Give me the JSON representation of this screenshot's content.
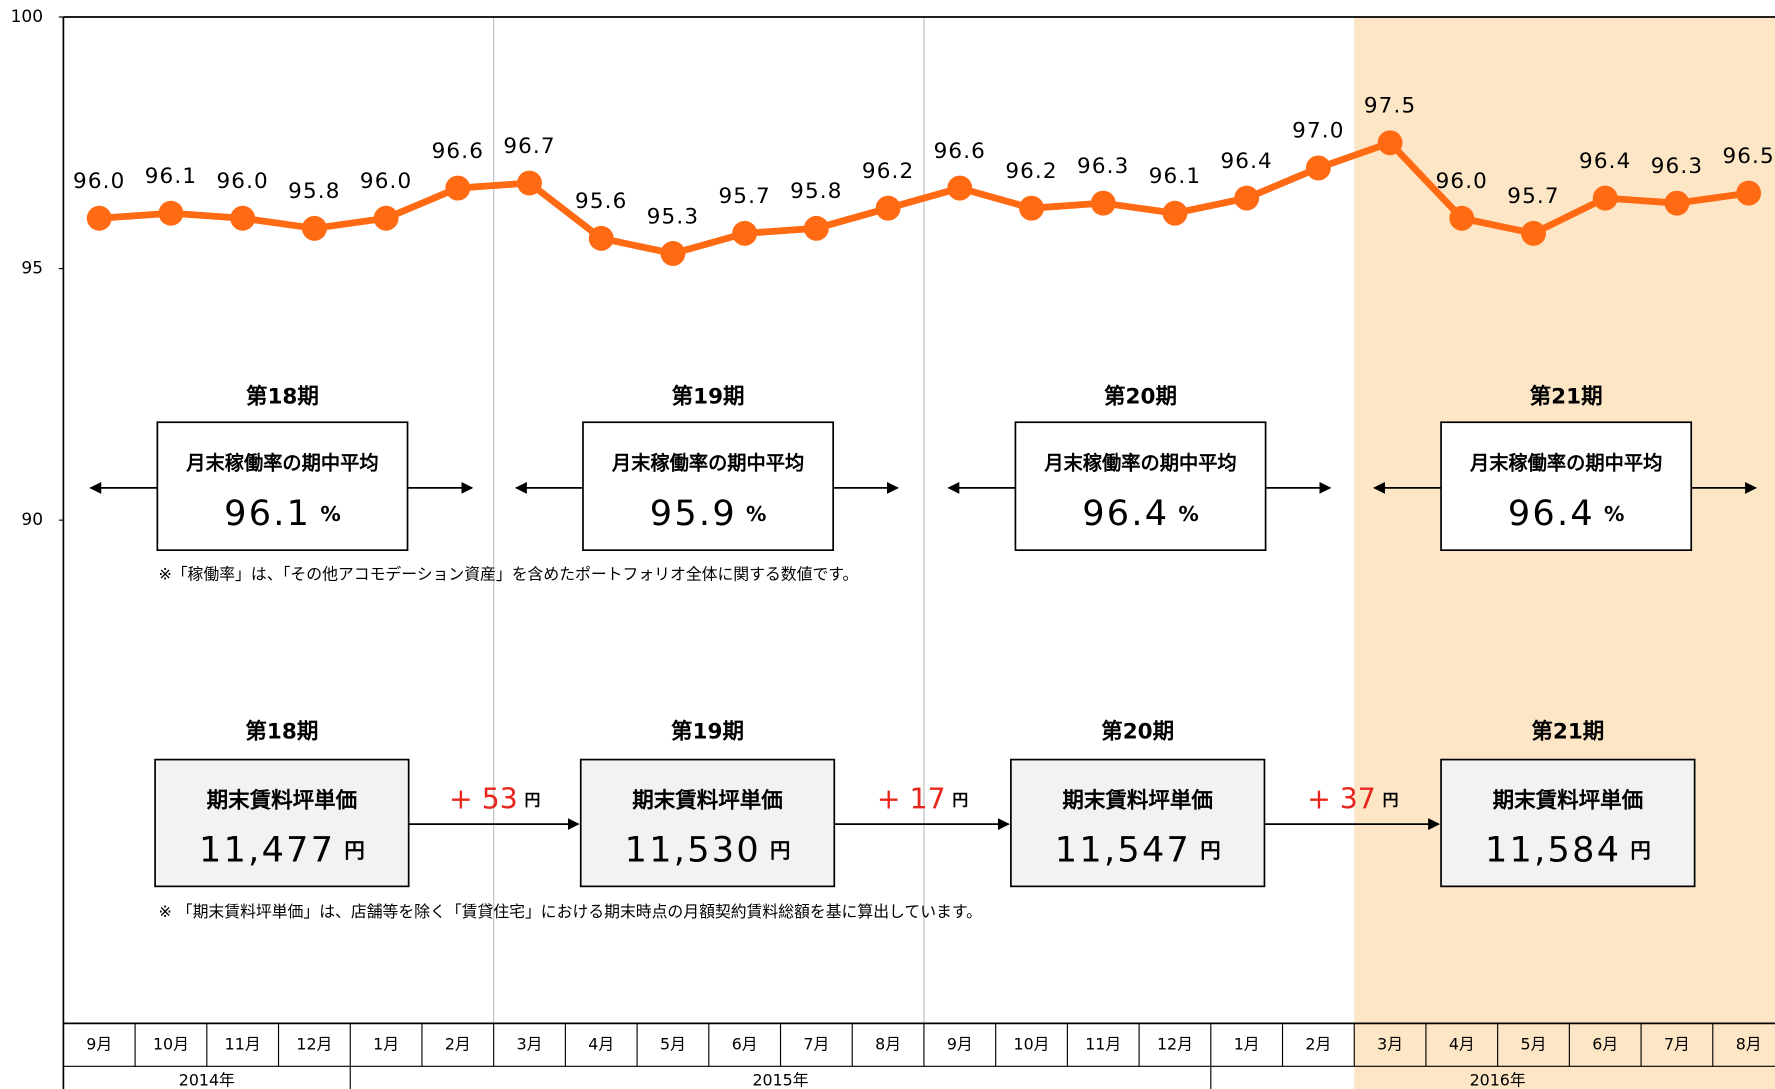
{
  "chart_data": {
    "type": "line",
    "categories": [
      "9月",
      "10月",
      "11月",
      "12月",
      "1月",
      "2月",
      "3月",
      "4月",
      "5月",
      "6月",
      "7月",
      "8月",
      "9月",
      "10月",
      "11月",
      "12月",
      "1月",
      "2月",
      "3月",
      "4月",
      "5月",
      "6月",
      "7月",
      "8月"
    ],
    "years": [
      {
        "label": "2014年",
        "span": 4
      },
      {
        "label": "2015年",
        "span": 12
      },
      {
        "label": "2016年",
        "span": 8
      }
    ],
    "values": [
      96.0,
      96.1,
      96.0,
      95.8,
      96.0,
      96.6,
      96.7,
      95.6,
      95.3,
      95.7,
      95.8,
      96.2,
      96.6,
      96.2,
      96.3,
      96.1,
      96.4,
      97.0,
      97.5,
      96.0,
      95.7,
      96.4,
      96.3,
      96.5
    ],
    "value_labels": [
      "96.0",
      "96.1",
      "96.0",
      "95.8",
      "96.0",
      "96.6",
      "96.7",
      "95.6",
      "95.3",
      "95.7",
      "95.8",
      "96.2",
      "96.6",
      "96.2",
      "96.3",
      "96.1",
      "96.4",
      "97.0",
      "97.5",
      "96.0",
      "95.7",
      "96.4",
      "96.3",
      "96.5"
    ],
    "color": "#ff6a13",
    "ylim": [
      80,
      100
    ],
    "yticks": [
      90,
      95,
      100
    ],
    "period_starts": [
      0,
      6,
      12,
      18
    ],
    "highlight_from": 18,
    "periods": [
      {
        "name": "第18期",
        "occupancy_label": "月末稼働率の期中平均",
        "occupancy": 96.1,
        "occupancy_unit": "%",
        "rent_label": "期末賃料坪単価",
        "rent": "11,477",
        "rent_unit": "円"
      },
      {
        "name": "第19期",
        "occupancy_label": "月末稼働率の期中平均",
        "occupancy": 95.9,
        "occupancy_unit": "%",
        "rent_label": "期末賃料坪単価",
        "rent": "11,530",
        "rent_unit": "円"
      },
      {
        "name": "第20期",
        "occupancy_label": "月末稼働率の期中平均",
        "occupancy": 96.4,
        "occupancy_unit": "%",
        "rent_label": "期末賃料坪単価",
        "rent": "11,547",
        "rent_unit": "円"
      },
      {
        "name": "第21期",
        "occupancy_label": "月末稼働率の期中平均",
        "occupancy": 96.4,
        "occupancy_unit": "%",
        "rent_label": "期末賃料坪単価",
        "rent": "11,584",
        "rent_unit": "円"
      }
    ],
    "increments": [
      {
        "value": "+ 53",
        "unit": "円"
      },
      {
        "value": "+ 17",
        "unit": "円"
      },
      {
        "value": "+ 37",
        "unit": "円"
      }
    ],
    "occupancy_note": "※「稼働率」は、「その他アコモデーション資産」を含めたポートフォリオ全体に関する数値です。",
    "rent_note": "※ 「期末賃料坪単価」は、店舗等を除く「賃貸住宅」における期末時点の月額契約賃料総額を基に算出しています。"
  }
}
